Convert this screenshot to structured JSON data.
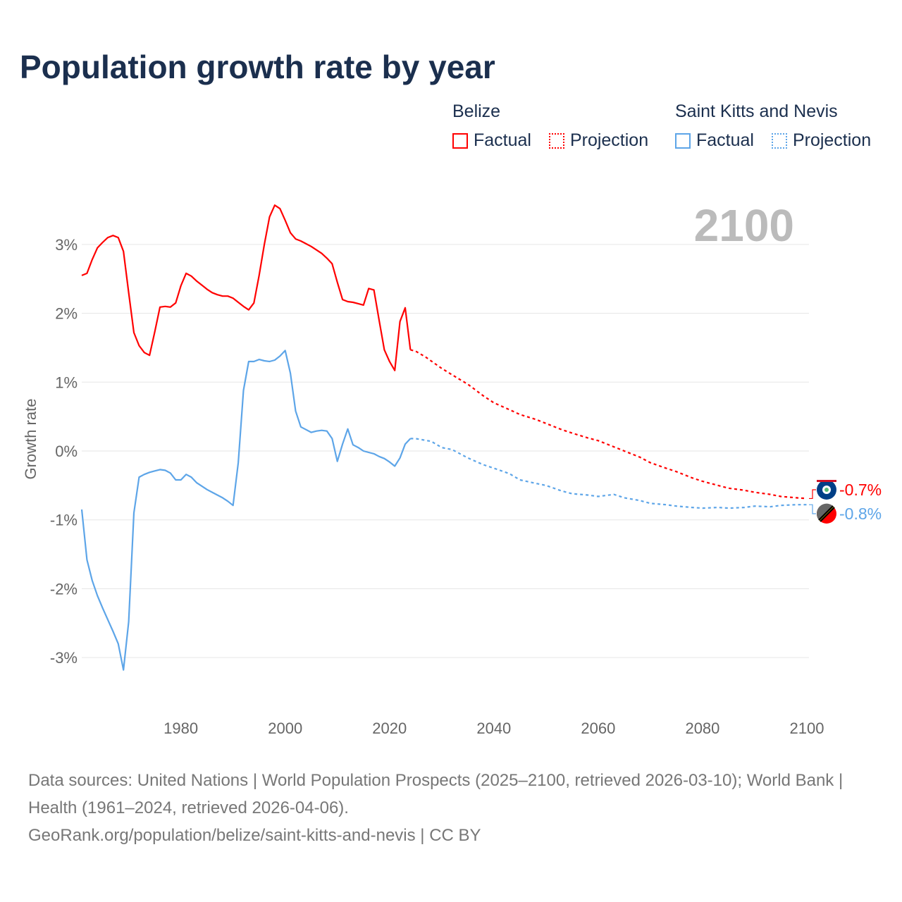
{
  "title": "Population growth rate by year",
  "legend": {
    "groups": [
      {
        "name": "Belize",
        "factual": "Factual",
        "projection": "Projection",
        "color": "#ff0000"
      },
      {
        "name": "Saint Kitts and Nevis",
        "factual": "Factual",
        "projection": "Projection",
        "color": "#5da5e8"
      }
    ]
  },
  "year_label": "2100",
  "footer": {
    "sources": "Data sources: United Nations | World Population Prospects (2025–2100, retrieved 2026-03-10); World Bank | Health (1961–2024, retrieved 2026-04-06).",
    "url": "GeoRank.org/population/belize/saint-kitts-and-nevis | CC BY"
  },
  "chart_data": {
    "type": "line",
    "title": "Population growth rate by year",
    "xlabel": "",
    "ylabel": "Growth rate",
    "xlim": [
      1961,
      2100
    ],
    "ylim": [
      -3.5,
      3.7
    ],
    "x_ticks": [
      1980,
      2000,
      2020,
      2040,
      2060,
      2080,
      2100
    ],
    "x_tick_labels": [
      "1980",
      "2000",
      "2020",
      "2040",
      "2060",
      "2080",
      "2100"
    ],
    "y_ticks": [
      3,
      2,
      1,
      0,
      -1,
      -2,
      -3
    ],
    "y_tick_labels": [
      "3%",
      "2%",
      "1%",
      "0%",
      "-1%",
      "-2%",
      "-3%"
    ],
    "grid": true,
    "series": [
      {
        "name": "Belize",
        "color": "#ff0000",
        "end_label": "-0.7%",
        "factual": {
          "x": [
            1961,
            1962,
            1963,
            1964,
            1965,
            1966,
            1967,
            1968,
            1969,
            1970,
            1971,
            1972,
            1973,
            1974,
            1975,
            1976,
            1977,
            1978,
            1979,
            1980,
            1981,
            1982,
            1983,
            1984,
            1985,
            1986,
            1987,
            1988,
            1989,
            1990,
            1991,
            1992,
            1993,
            1994,
            1995,
            1996,
            1997,
            1998,
            1999,
            2000,
            2001,
            2002,
            2003,
            2004,
            2005,
            2006,
            2007,
            2008,
            2009,
            2010,
            2011,
            2012,
            2013,
            2014,
            2015,
            2016,
            2017,
            2018,
            2019,
            2020,
            2021,
            2022,
            2023,
            2024
          ],
          "y": [
            2.55,
            2.58,
            2.78,
            2.95,
            3.03,
            3.1,
            3.13,
            3.1,
            2.9,
            2.3,
            1.72,
            1.53,
            1.43,
            1.39,
            1.73,
            2.09,
            2.1,
            2.09,
            2.15,
            2.4,
            2.58,
            2.54,
            2.47,
            2.41,
            2.35,
            2.3,
            2.27,
            2.25,
            2.25,
            2.22,
            2.16,
            2.1,
            2.05,
            2.15,
            2.55,
            3.0,
            3.4,
            3.57,
            3.52,
            3.35,
            3.17,
            3.08,
            3.05,
            3.01,
            2.97,
            2.92,
            2.87,
            2.8,
            2.72,
            2.45,
            2.2,
            2.17,
            2.16,
            2.14,
            2.12,
            2.36,
            2.34,
            1.9,
            1.47,
            1.3,
            1.17,
            1.88,
            2.08,
            1.47
          ]
        },
        "projection": {
          "x": [
            2024,
            2025,
            2027,
            2030,
            2033,
            2035,
            2038,
            2040,
            2043,
            2045,
            2048,
            2050,
            2053,
            2055,
            2058,
            2060,
            2063,
            2065,
            2068,
            2070,
            2073,
            2075,
            2078,
            2080,
            2083,
            2085,
            2088,
            2090,
            2093,
            2095,
            2098,
            2100
          ],
          "y": [
            1.47,
            1.45,
            1.36,
            1.2,
            1.06,
            0.97,
            0.8,
            0.7,
            0.6,
            0.53,
            0.46,
            0.4,
            0.31,
            0.26,
            0.19,
            0.15,
            0.06,
            0.0,
            -0.09,
            -0.17,
            -0.25,
            -0.3,
            -0.39,
            -0.44,
            -0.5,
            -0.54,
            -0.57,
            -0.6,
            -0.63,
            -0.66,
            -0.68,
            -0.69
          ]
        }
      },
      {
        "name": "Saint Kitts and Nevis",
        "color": "#5da5e8",
        "end_label": "-0.8%",
        "factual": {
          "x": [
            1961,
            1962,
            1963,
            1964,
            1965,
            1966,
            1967,
            1968,
            1969,
            1970,
            1971,
            1972,
            1973,
            1974,
            1975,
            1976,
            1977,
            1978,
            1979,
            1980,
            1981,
            1982,
            1983,
            1984,
            1985,
            1986,
            1987,
            1988,
            1989,
            1990,
            1991,
            1992,
            1993,
            1994,
            1995,
            1996,
            1997,
            1998,
            1999,
            2000,
            2001,
            2002,
            2003,
            2004,
            2005,
            2006,
            2007,
            2008,
            2009,
            2010,
            2011,
            2012,
            2013,
            2014,
            2015,
            2016,
            2017,
            2018,
            2019,
            2020,
            2021,
            2022,
            2023,
            2024
          ],
          "y": [
            -0.85,
            -1.58,
            -1.88,
            -2.1,
            -2.28,
            -2.45,
            -2.62,
            -2.8,
            -3.18,
            -2.48,
            -0.9,
            -0.38,
            -0.34,
            -0.31,
            -0.29,
            -0.27,
            -0.28,
            -0.32,
            -0.42,
            -0.42,
            -0.34,
            -0.38,
            -0.46,
            -0.51,
            -0.56,
            -0.6,
            -0.64,
            -0.68,
            -0.73,
            -0.79,
            -0.17,
            0.88,
            1.3,
            1.3,
            1.33,
            1.31,
            1.3,
            1.32,
            1.38,
            1.46,
            1.13,
            0.58,
            0.35,
            0.31,
            0.27,
            0.29,
            0.3,
            0.29,
            0.18,
            -0.15,
            0.1,
            0.32,
            0.09,
            0.05,
            0.0,
            -0.02,
            -0.04,
            -0.08,
            -0.11,
            -0.16,
            -0.22,
            -0.1,
            0.1,
            0.18
          ]
        },
        "projection": {
          "x": [
            2024,
            2025,
            2028,
            2030,
            2032,
            2035,
            2038,
            2040,
            2043,
            2045,
            2048,
            2050,
            2053,
            2055,
            2058,
            2060,
            2063,
            2065,
            2068,
            2070,
            2073,
            2075,
            2078,
            2080,
            2083,
            2085,
            2088,
            2090,
            2093,
            2095,
            2098,
            2100
          ],
          "y": [
            0.18,
            0.18,
            0.14,
            0.05,
            0.02,
            -0.1,
            -0.2,
            -0.25,
            -0.33,
            -0.42,
            -0.47,
            -0.5,
            -0.58,
            -0.62,
            -0.64,
            -0.66,
            -0.63,
            -0.68,
            -0.72,
            -0.76,
            -0.78,
            -0.8,
            -0.82,
            -0.83,
            -0.82,
            -0.83,
            -0.82,
            -0.8,
            -0.81,
            -0.79,
            -0.78,
            -0.78
          ]
        }
      }
    ]
  }
}
